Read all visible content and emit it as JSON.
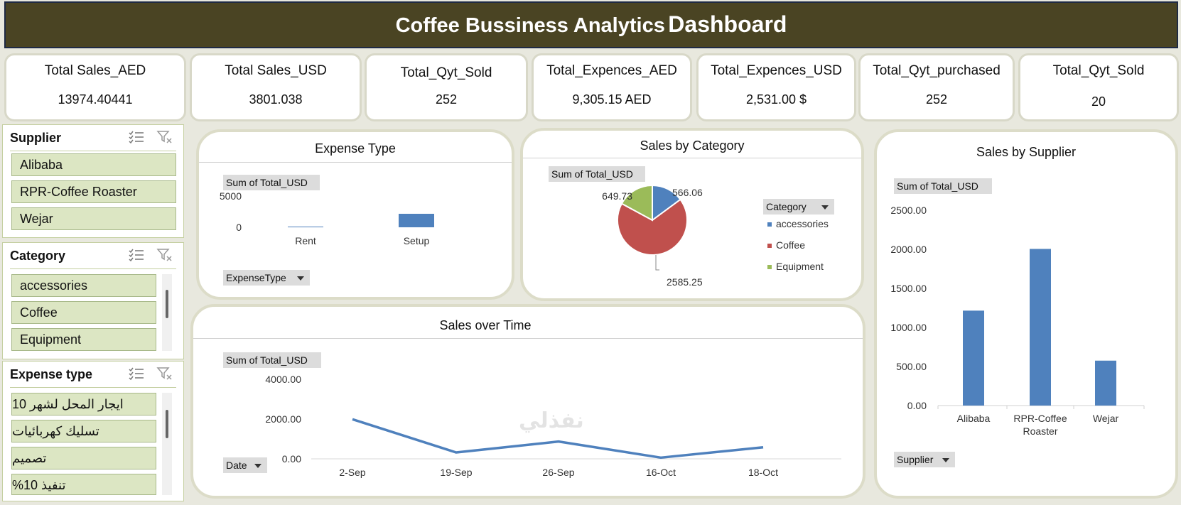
{
  "header": {
    "title_part1": "Coffee Bussiness Analytics",
    "title_part2": "Dashboard"
  },
  "kpis": [
    {
      "label": "Total Sales_AED",
      "value": "13974.40441"
    },
    {
      "label": "Total Sales_USD",
      "value": "3801.038"
    },
    {
      "label": "Total_Qyt_Sold",
      "value": "252"
    },
    {
      "label": "Total_Expences_AED",
      "value": "9,305.15 AED"
    },
    {
      "label": "Total_Expences_USD",
      "value": "2,531.00 $"
    },
    {
      "label": "Total_Qyt_purchased",
      "value": "252"
    },
    {
      "label": "Total_Qyt_Sold",
      "value": "20"
    }
  ],
  "slicers": {
    "supplier": {
      "title": "Supplier",
      "items": [
        "Alibaba",
        "RPR-Coffee Roaster",
        "Wejar"
      ]
    },
    "category": {
      "title": "Category",
      "items": [
        "accessories",
        "Coffee",
        "Equipment"
      ]
    },
    "expense_type": {
      "title": "Expense type",
      "items": [
        "ايجار المحل لشهر 10",
        "تسليك كهربائيات",
        "تصميم",
        "تنفيذ 10%"
      ]
    }
  },
  "panels": {
    "expense_type": {
      "title": "Expense Type",
      "value_field": "Sum of Total_USD",
      "axis_field": "ExpenseType"
    },
    "sales_by_category": {
      "title": "Sales by Category",
      "value_field": "Sum of Total_USD",
      "legend_field": "Category"
    },
    "sales_over_time": {
      "title": "Sales over Time",
      "value_field": "Sum of Total_USD",
      "axis_field": "Date"
    },
    "sales_by_supplier": {
      "title": "Sales by Supplier",
      "value_field": "Sum of Total_USD",
      "axis_field": "Supplier"
    }
  },
  "watermark": "نفذلي",
  "colors": {
    "blue": "#4f81bd",
    "red": "#c0504d",
    "green": "#9bbb59",
    "header_bg": "#4a4423",
    "slicer_item": "#dce6c3"
  },
  "chart_data": [
    {
      "type": "bar",
      "title": "Expense Type",
      "categories": [
        "Rent",
        "Setup"
      ],
      "values": [
        25,
        2160
      ],
      "ylim": [
        0,
        5000
      ],
      "yticks": [
        "5000",
        "0"
      ],
      "grid": false
    },
    {
      "type": "pie",
      "title": "Sales by Category",
      "categories": [
        "accessories",
        "Coffee",
        "Equipment"
      ],
      "values": [
        566.06,
        2585.25,
        649.73
      ],
      "labels": [
        "566.06",
        "2585.25",
        "649.73"
      ],
      "legend": "right"
    },
    {
      "type": "line",
      "title": "Sales over Time",
      "x": [
        "2-Sep",
        "19-Sep",
        "26-Sep",
        "16-Oct",
        "18-Oct"
      ],
      "values": [
        1990,
        320,
        870,
        60,
        580
      ],
      "ylim": [
        0,
        4000
      ],
      "yticks": [
        "4000.00",
        "2000.00",
        "0.00"
      ]
    },
    {
      "type": "bar",
      "title": "Sales by Supplier",
      "categories": [
        "Alibaba",
        "RPR-Coffee Roaster",
        "Wejar"
      ],
      "category_lines": [
        [
          "Alibaba"
        ],
        [
          "RPR-Coffee",
          "Roaster"
        ],
        [
          "Wejar"
        ]
      ],
      "values": [
        1215,
        2005,
        575
      ],
      "ylim": [
        0,
        2500
      ],
      "yticks": [
        "2500.00",
        "2000.00",
        "1500.00",
        "1000.00",
        "500.00",
        "0.00"
      ]
    }
  ]
}
